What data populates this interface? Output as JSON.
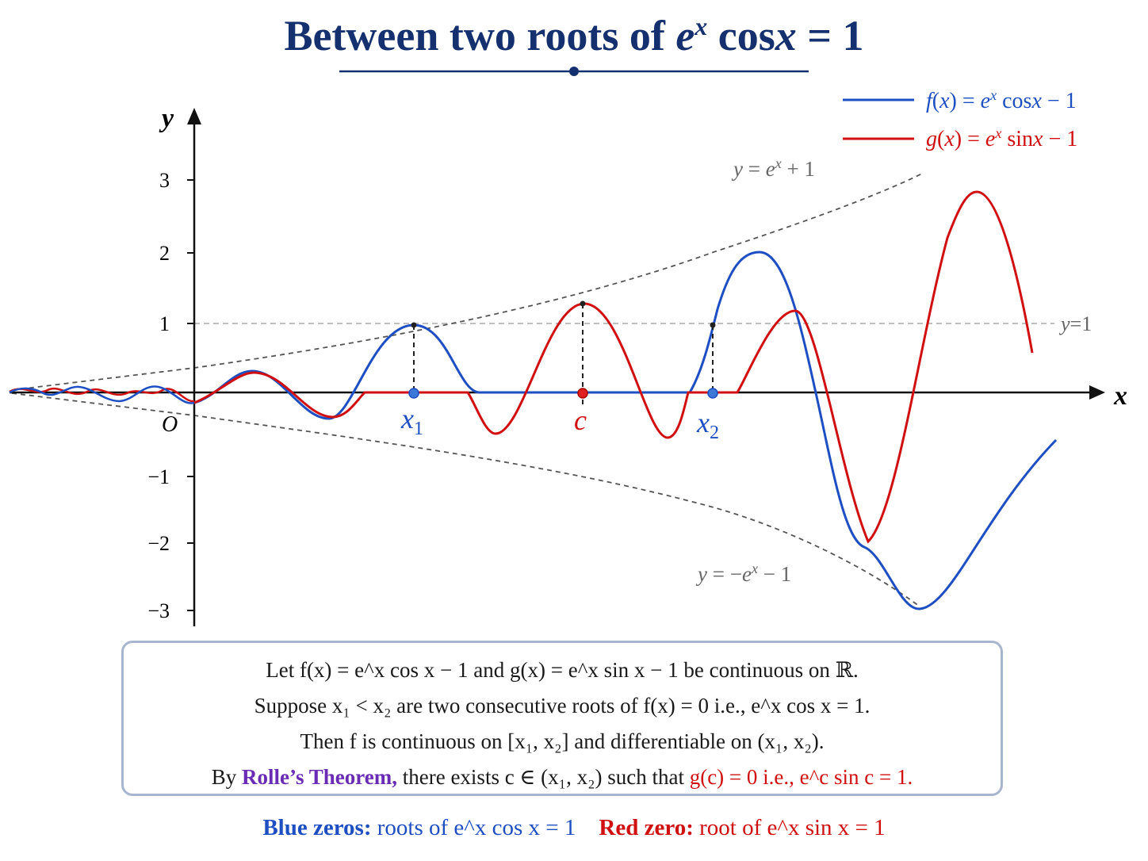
{
  "title": {
    "prefix": "Between two roots of",
    "expr": "e^x cos x = 1"
  },
  "legend": [
    {
      "label": "f(x) = e^x cos x − 1",
      "color": "#1e4fc2"
    },
    {
      "label": "g(x) = e^x sin x − 1",
      "color": "#d01010"
    }
  ],
  "axes": {
    "x_label": "x",
    "y_label": "y",
    "origin_label": "O",
    "y_ticks": [
      "3",
      "2",
      "1",
      "−1",
      "−2",
      "−3"
    ]
  },
  "curve_labels": {
    "upper": "y = e^x + 1",
    "lower": "y = −e^x − 1",
    "hline": "y=1"
  },
  "points": {
    "x1": "x₁",
    "c": "c",
    "x2": "x₂"
  },
  "box": {
    "line1": "Let f(x) = e^x cos x − 1 and g(x) = e^x sin x − 1 be continuous on ℝ.",
    "line2": "Suppose x₁ < x₂ are two consecutive roots of f(x) = 0 i.e., e^x cos x = 1.",
    "line3": "Then f is continuous on [x₁, x₂] and differentiable on (x₁, x₂).",
    "line4_pre": "By",
    "line4_rolle": "Rolle’s Theorem,",
    "line4_mid": "there exists c ∈ (x₁, x₂) such that",
    "line4_red": "g(c) = 0 i.e., e^c sin c = 1."
  },
  "footer": {
    "blue_bold": "Blue zeros:",
    "blue_text": "roots of e^x cos x = 1",
    "red_bold": "Red zero:",
    "red_text": "root of e^x sin x = 1"
  },
  "colors": {
    "blue": "#1e4fc2",
    "red": "#d01010",
    "title": "#14306e",
    "dashed": "#555555"
  }
}
